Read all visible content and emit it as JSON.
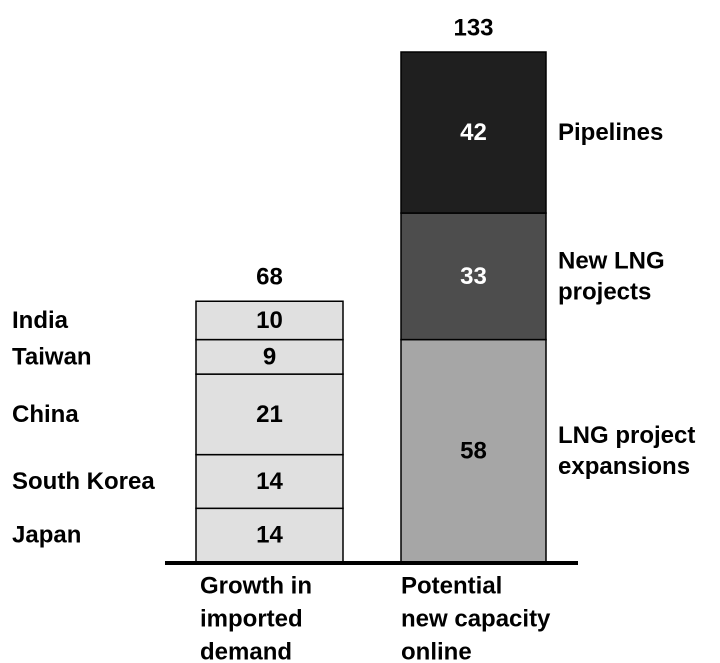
{
  "chart_data": {
    "type": "bar",
    "stacked": true,
    "categories": [
      "Growth in imported demand",
      "Potential new capacity online"
    ],
    "category_label_lines": [
      [
        "Growth in",
        "imported",
        "demand"
      ],
      [
        "Potential",
        "new capacity",
        "online"
      ]
    ],
    "bars": [
      {
        "name": "Growth in imported demand",
        "total": 68,
        "segments": [
          {
            "name": "Japan",
            "value": 14,
            "color": "#e0e0e0",
            "label_color": "#000000",
            "side_label": [
              "Japan"
            ]
          },
          {
            "name": "South Korea",
            "value": 14,
            "color": "#e0e0e0",
            "label_color": "#000000",
            "side_label": [
              "South Korea"
            ]
          },
          {
            "name": "China",
            "value": 21,
            "color": "#e0e0e0",
            "label_color": "#000000",
            "side_label": [
              "China"
            ]
          },
          {
            "name": "Taiwan",
            "value": 9,
            "color": "#e0e0e0",
            "label_color": "#000000",
            "side_label": [
              "Taiwan"
            ]
          },
          {
            "name": "India",
            "value": 10,
            "color": "#e0e0e0",
            "label_color": "#000000",
            "side_label": [
              "India"
            ]
          }
        ]
      },
      {
        "name": "Potential new capacity online",
        "total": 133,
        "segments": [
          {
            "name": "LNG project expansions",
            "value": 58,
            "color": "#a6a6a6",
            "label_color": "#000000",
            "side_label": [
              "LNG project",
              "expansions"
            ]
          },
          {
            "name": "New LNG projects",
            "value": 33,
            "color": "#4d4d4d",
            "label_color": "#ffffff",
            "side_label": [
              "New LNG",
              "projects"
            ]
          },
          {
            "name": "Pipelines",
            "value": 42,
            "color": "#1f1f1f",
            "label_color": "#ffffff",
            "side_label": [
              "Pipelines"
            ]
          }
        ]
      }
    ],
    "ylim": [
      0,
      133
    ],
    "grid": false,
    "legend": "none",
    "side_labels": {
      "Growth in imported demand": "left",
      "Potential new capacity online": "right"
    }
  }
}
